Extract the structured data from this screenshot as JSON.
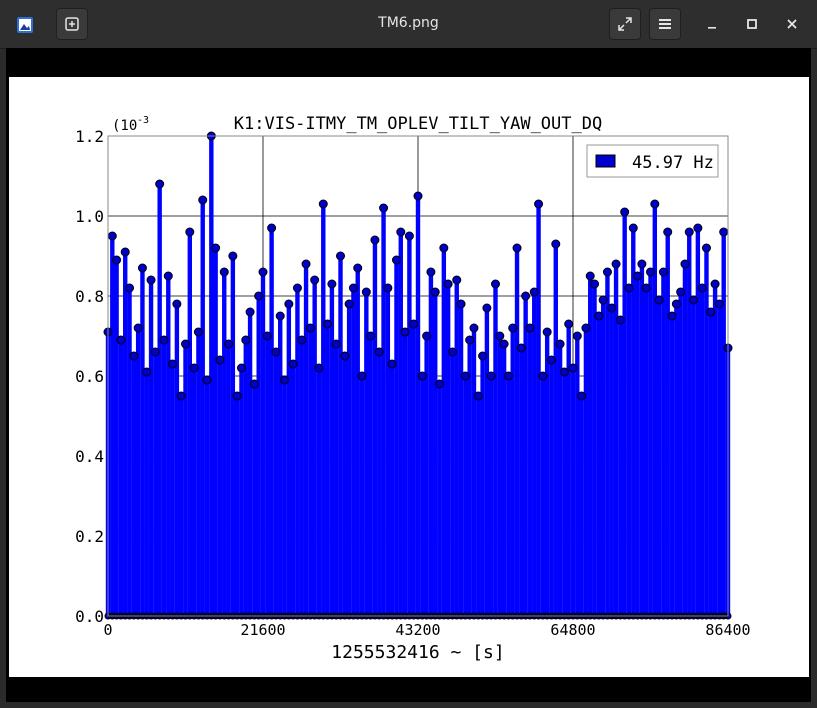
{
  "window": {
    "title": "TM6.png",
    "app_icon": "image-viewer-icon",
    "buttons": {
      "new_tab": "plus-icon",
      "fullscreen": "expand-icon",
      "menu": "hamburger-icon",
      "minimize": "minimize-icon",
      "maximize": "maximize-icon",
      "close": "close-icon"
    }
  },
  "colors": {
    "series": "#0000ff",
    "marker_fill": "#0000cc",
    "grid": "#000000"
  },
  "chart_data": {
    "type": "line",
    "title": "K1:VIS-ITMY_TM_OPLEV_TILT_YAW_OUT_DQ",
    "xlabel": "1255532416 ~ [s]",
    "ylabel": "",
    "y_scale_label": "(10",
    "y_scale_exponent": "-3",
    "xlim": [
      0,
      86400
    ],
    "ylim": [
      0.0,
      1.2
    ],
    "x_ticks": [
      "0",
      "21600",
      "43200",
      "64800",
      "86400"
    ],
    "y_ticks": [
      "0.0",
      "0.2",
      "0.4",
      "0.6",
      "0.8",
      "1.0",
      "1.2"
    ],
    "grid": true,
    "legend_position": "top-right",
    "series": [
      {
        "name": "45.97 Hz",
        "style": "stem",
        "x": [
          0,
          600,
          1200,
          1800,
          2400,
          3000,
          3600,
          4200,
          4800,
          5400,
          6000,
          6600,
          7200,
          7800,
          8400,
          9000,
          9600,
          10200,
          10800,
          11400,
          12000,
          12600,
          13200,
          13800,
          14400,
          15000,
          15600,
          16200,
          16800,
          17400,
          18000,
          18600,
          19200,
          19800,
          20400,
          21000,
          21600,
          22200,
          22800,
          23400,
          24000,
          24600,
          25200,
          25800,
          26400,
          27000,
          27600,
          28200,
          28800,
          29400,
          30000,
          30600,
          31200,
          31800,
          32400,
          33000,
          33600,
          34200,
          34800,
          35400,
          36000,
          36600,
          37200,
          37800,
          38400,
          39000,
          39600,
          40200,
          40800,
          41400,
          42000,
          42600,
          43200,
          43800,
          44400,
          45000,
          45600,
          46200,
          46800,
          47400,
          48000,
          48600,
          49200,
          49800,
          50400,
          51000,
          51600,
          52200,
          52800,
          53400,
          54000,
          54600,
          55200,
          55800,
          56400,
          57000,
          57600,
          58200,
          58800,
          59400,
          60000,
          60600,
          61200,
          61800,
          62400,
          63000,
          63600,
          64200,
          64800,
          65400,
          66000,
          66600,
          67200,
          67800,
          68400,
          69000,
          69600,
          70200,
          70800,
          71400,
          72000,
          72600,
          73200,
          73800,
          74400,
          75000,
          75600,
          76200,
          76800,
          77400,
          78000,
          78600,
          79200,
          79800,
          80400,
          81000,
          81600,
          82200,
          82800,
          83400,
          84000,
          84600,
          85200,
          85800,
          86400
        ],
        "values": [
          0.71,
          0.95,
          0.89,
          0.69,
          0.91,
          0.82,
          0.65,
          0.72,
          0.87,
          0.61,
          0.84,
          0.66,
          1.08,
          0.69,
          0.85,
          0.63,
          0.78,
          0.55,
          0.68,
          0.96,
          0.62,
          0.71,
          1.04,
          0.59,
          1.2,
          0.92,
          0.64,
          0.86,
          0.68,
          0.9,
          0.55,
          0.62,
          0.69,
          0.76,
          0.58,
          0.8,
          0.86,
          0.7,
          0.97,
          0.66,
          0.75,
          0.59,
          0.78,
          0.63,
          0.82,
          0.69,
          0.88,
          0.72,
          0.84,
          0.62,
          1.03,
          0.73,
          0.83,
          0.68,
          0.9,
          0.65,
          0.78,
          0.82,
          0.87,
          0.6,
          0.81,
          0.7,
          0.94,
          0.66,
          1.02,
          0.82,
          0.63,
          0.89,
          0.96,
          0.71,
          0.95,
          0.73,
          1.05,
          0.6,
          0.7,
          0.86,
          0.81,
          0.58,
          0.92,
          0.83,
          0.66,
          0.84,
          0.78,
          0.6,
          0.69,
          0.72,
          0.55,
          0.65,
          0.77,
          0.6,
          0.83,
          0.7,
          0.68,
          0.6,
          0.72,
          0.92,
          0.67,
          0.8,
          0.72,
          0.81,
          1.03,
          0.6,
          0.71,
          0.64,
          0.93,
          0.68,
          0.61,
          0.73,
          0.62,
          0.7,
          0.55,
          0.72,
          0.85,
          0.83,
          0.75,
          0.79,
          0.86,
          0.77,
          0.88,
          0.74,
          1.01,
          0.82,
          0.97,
          0.85,
          0.88,
          0.82,
          0.86,
          1.03,
          0.79,
          0.86,
          0.96,
          0.75,
          0.78,
          0.81,
          0.88,
          0.96,
          0.79,
          0.97,
          0.82,
          0.92,
          0.76,
          0.83,
          0.78,
          0.96,
          0.67
        ]
      }
    ]
  }
}
